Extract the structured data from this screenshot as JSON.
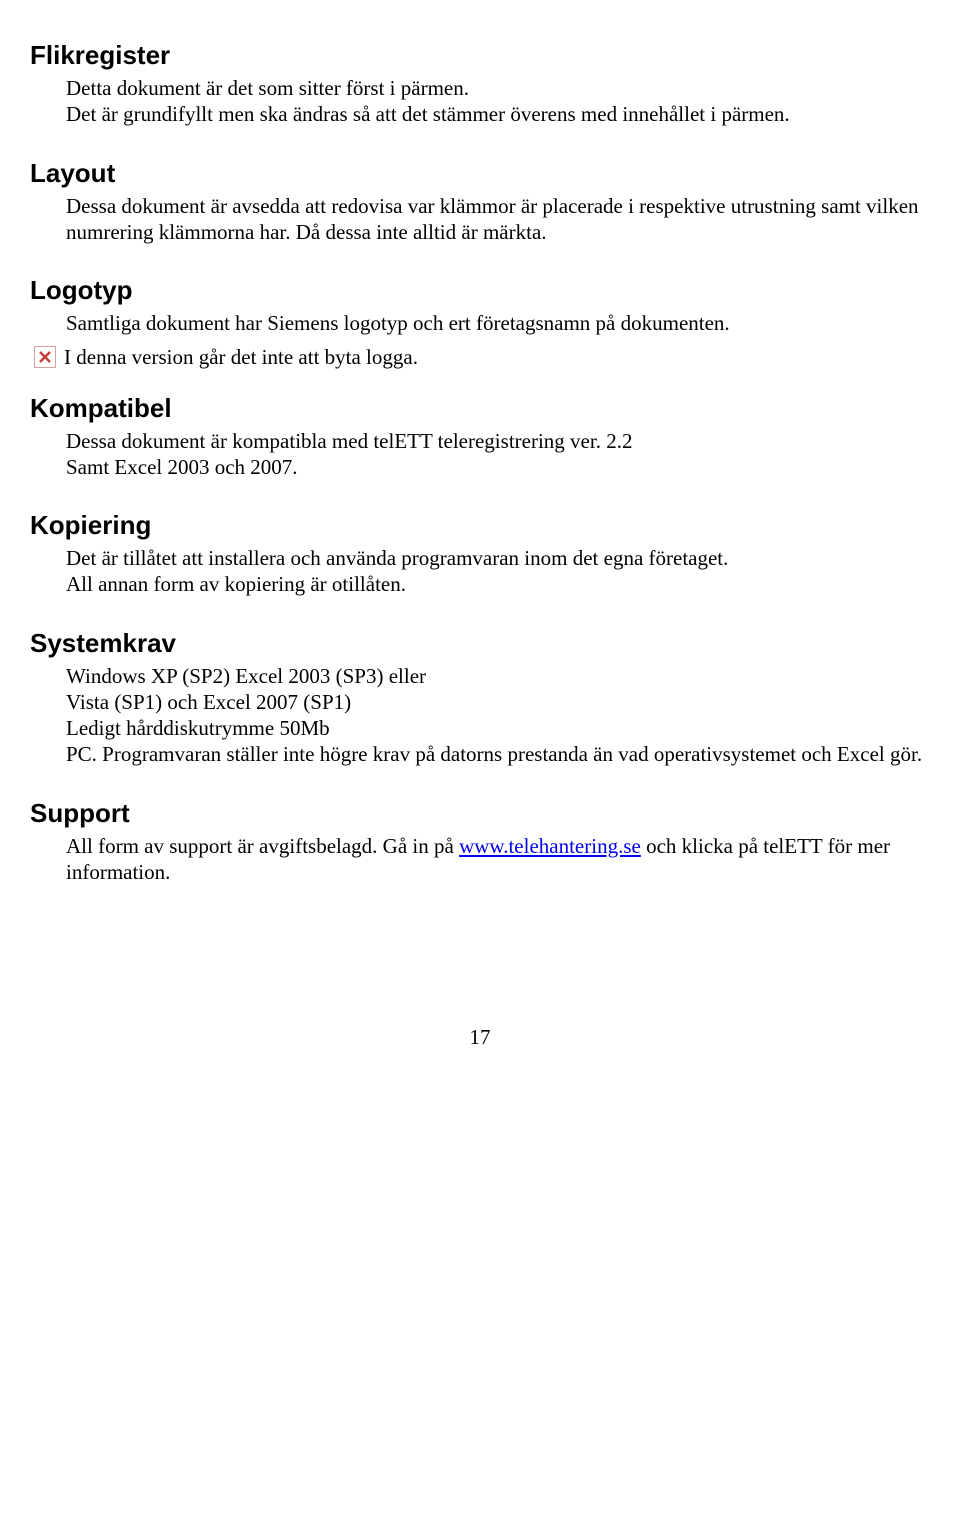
{
  "sections": {
    "flikregister": {
      "heading": "Flikregister",
      "body": "Detta dokument är det som sitter först i pärmen.\nDet är grundifyllt men ska ändras så att det stämmer överens med innehållet i pärmen."
    },
    "layout": {
      "heading": "Layout",
      "body": "Dessa dokument är avsedda att redovisa var klämmor är placerade i respektive utrustning samt vilken numrering klämmorna har. Då dessa inte alltid är märkta."
    },
    "logotyp": {
      "heading": "Logotyp",
      "line1": "Samtliga dokument har Siemens logotyp och ert företagsnamn på dokumenten.",
      "line2": "I denna version går det inte att byta logga."
    },
    "kompatibel": {
      "heading": "Kompatibel",
      "body": "Dessa dokument är kompatibla med telETT teleregistrering ver. 2.2\nSamt Excel 2003 och 2007."
    },
    "kopiering": {
      "heading": "Kopiering",
      "body": "Det är tillåtet att installera och använda programvaran inom det egna företaget.\nAll annan form av kopiering är otillåten."
    },
    "systemkrav": {
      "heading": "Systemkrav",
      "body": "Windows XP (SP2) Excel 2003 (SP3) eller\nVista (SP1) och Excel 2007 (SP1)\nLedigt hårddiskutrymme 50Mb\nPC. Programvaran ställer inte högre krav på datorns prestanda än vad operativsystemet och Excel gör."
    },
    "support": {
      "heading": "Support",
      "prefix": "All form av support är avgiftsbelagd. Gå in på ",
      "link_text": "www.telehantering.se",
      "suffix": " och klicka på telETT för mer information."
    }
  },
  "page_number": "17",
  "colors": {
    "heading": "#000000",
    "body": "#000000",
    "link": "#0000ee",
    "icon_border": "#d8a0a0",
    "icon_x": "#c04040",
    "background": "#ffffff"
  }
}
